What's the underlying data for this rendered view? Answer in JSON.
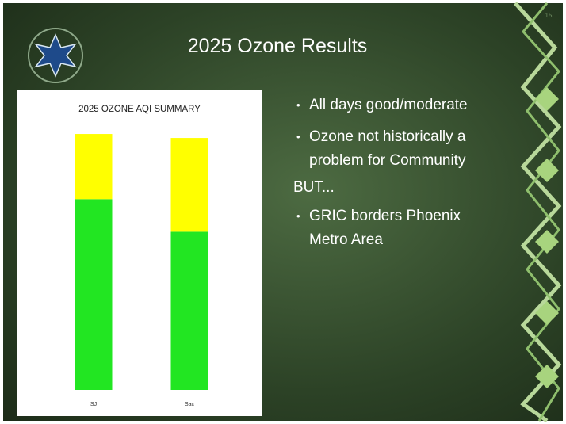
{
  "slide": {
    "title": "2025 Ozone Results",
    "number": "15",
    "bullets": [
      "All days good/moderate",
      "Ozone not historically a problem for Community"
    ],
    "connector": "BUT...",
    "bullets_after": [
      "GRIC borders Phoenix Metro Area"
    ]
  },
  "chart_data": {
    "type": "stacked_bar",
    "title": "2025 OZONE AQI SUMMARY",
    "categories": [
      "SJ",
      "Sac"
    ],
    "series": [
      {
        "color": "#22e622",
        "values": [
          240,
          199
        ]
      },
      {
        "color": "#ffff00",
        "values": [
          82,
          118
        ]
      }
    ],
    "ylim": [
      0,
      340
    ]
  }
}
